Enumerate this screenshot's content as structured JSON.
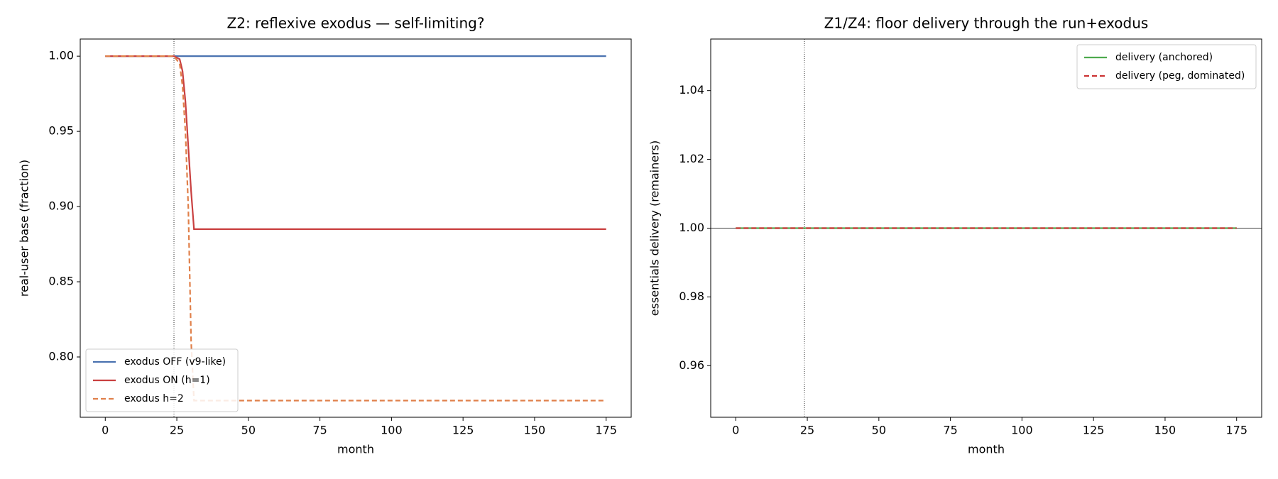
{
  "chart_data": [
    {
      "type": "line",
      "title": "Z2: reflexive exodus — self-limiting?",
      "xlabel": "month",
      "ylabel": "real-user base (fraction)",
      "xlim": [
        -8.75,
        183.75
      ],
      "xticks": [
        0,
        25,
        50,
        75,
        100,
        125,
        150,
        175
      ],
      "ylim": [
        0.7599,
        1.0114
      ],
      "yticks": [
        {
          "value": 0.8,
          "label": "0.80"
        },
        0.85,
        {
          "value": 0.9,
          "label": "0.90"
        },
        0.95,
        {
          "value": 1,
          "label": "1.00"
        }
      ],
      "vline": 24,
      "legend": "lower left",
      "series": [
        {
          "name": "exodus OFF (v9-like)",
          "color": "#4a72b0",
          "dash": false,
          "x": [
            0,
            175
          ],
          "values": [
            1,
            1
          ]
        },
        {
          "name": "exodus ON (h=1)",
          "color": "#c94040",
          "dash": false,
          "x": [
            0,
            24,
            26,
            27,
            28,
            29,
            30,
            31,
            175
          ],
          "values": [
            1,
            1,
            0.998,
            0.99,
            0.97,
            0.94,
            0.91,
            0.885,
            0.885
          ]
        },
        {
          "name": "exodus h=2",
          "color": "#e0804a",
          "dash": true,
          "x": [
            0,
            24,
            26,
            27,
            28,
            29,
            30,
            31,
            175
          ],
          "values": [
            1,
            1,
            0.995,
            0.98,
            0.95,
            0.9,
            0.81,
            0.771,
            0.771
          ]
        }
      ]
    },
    {
      "type": "line",
      "title": "Z1/Z4: floor delivery through the run+exodus",
      "xlabel": "month",
      "ylabel": "essentials delivery (remainers)",
      "xlim": [
        -8.75,
        183.75
      ],
      "xticks": [
        0,
        25,
        50,
        75,
        100,
        125,
        150,
        175
      ],
      "ylim": [
        0.945,
        1.055
      ],
      "yticks": [
        0.96,
        0.98,
        {
          "value": 1,
          "label": "1.00"
        },
        1.02,
        1.04
      ],
      "vline": 24,
      "hline": 1,
      "legend": "upper right",
      "series": [
        {
          "name": "delivery (anchored)",
          "color": "#4daa4d",
          "dash": false,
          "x": [
            0,
            175
          ],
          "values": [
            1,
            1
          ]
        },
        {
          "name": "delivery (peg, dominated)",
          "color": "#cc3333",
          "dash": true,
          "x": [
            0,
            175
          ],
          "values": [
            1,
            1
          ]
        }
      ]
    }
  ]
}
